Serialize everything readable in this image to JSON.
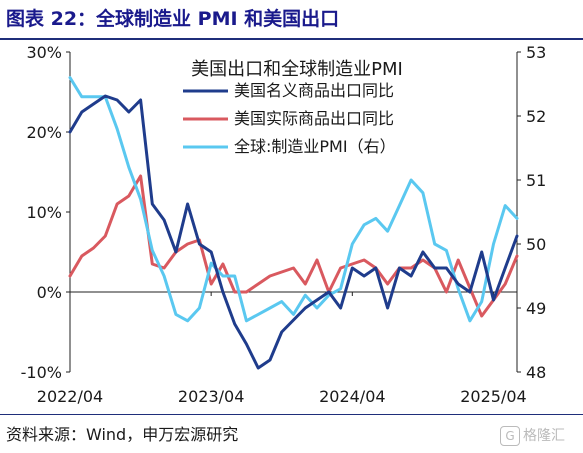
{
  "header": {
    "title": "图表 22：全球制造业 PMI 和美国出口"
  },
  "footer": {
    "source": "资料来源：Wind，申万宏源研究"
  },
  "watermark": {
    "text": "格隆汇",
    "badge": "G"
  },
  "chart_data": {
    "type": "line",
    "title": "美国出口和全球制造业PMI",
    "x_tick_labels": [
      "2022/04",
      "2023/04",
      "2024/04",
      "2025/04"
    ],
    "x_tick_indices": [
      0,
      12,
      24,
      36
    ],
    "x_count": 39,
    "y_left": {
      "ticks": [
        "-10%",
        "0%",
        "10%",
        "20%",
        "30%"
      ],
      "values": [
        -10,
        0,
        10,
        20,
        30
      ],
      "range": [
        -10,
        30
      ]
    },
    "y_right": {
      "ticks": [
        "48",
        "49",
        "50",
        "51",
        "52",
        "53"
      ],
      "values": [
        48,
        49,
        50,
        51,
        52,
        53
      ],
      "range": [
        48,
        53
      ]
    },
    "grid": false,
    "legend_position": "top-center",
    "series": [
      {
        "name": "美国名义商品出口同比",
        "axis": "left",
        "color": "#1f3c8c",
        "values": [
          20,
          22.5,
          23.5,
          24.5,
          24,
          22.5,
          24,
          11,
          9,
          5,
          11,
          6,
          5,
          0,
          -4,
          -6.5,
          -9.5,
          -8.5,
          -5,
          -3.5,
          -2,
          -1,
          0,
          -2,
          3,
          2,
          3,
          -2,
          3,
          2,
          5,
          3,
          3,
          1,
          0,
          5,
          -1,
          3,
          7
        ]
      },
      {
        "name": "美国实际商品出口同比",
        "axis": "left",
        "color": "#d9595f",
        "values": [
          2,
          4.5,
          5.5,
          7,
          11,
          12,
          14.5,
          3.5,
          3,
          5,
          6,
          6.5,
          1,
          3.5,
          0,
          0,
          1,
          2,
          2.5,
          3,
          1,
          4,
          0,
          3,
          3.5,
          4,
          3,
          1,
          3,
          3,
          4,
          3,
          0,
          4,
          0.5,
          -3,
          -1,
          1,
          4.5
        ]
      },
      {
        "name": "全球:制造业PMI（右）",
        "axis": "right",
        "color": "#5ac8f0",
        "values": [
          52.6,
          52.3,
          52.3,
          52.3,
          51.8,
          51.2,
          50.7,
          49.9,
          49.5,
          48.9,
          48.8,
          49.0,
          49.7,
          49.5,
          49.5,
          48.8,
          48.9,
          49.0,
          49.1,
          48.9,
          49.2,
          49.0,
          49.2,
          49.3,
          50.0,
          50.3,
          50.4,
          50.2,
          50.6,
          51.0,
          50.8,
          50.0,
          49.9,
          49.3,
          48.8,
          49.1,
          50.0,
          50.6,
          50.4
        ]
      }
    ]
  }
}
